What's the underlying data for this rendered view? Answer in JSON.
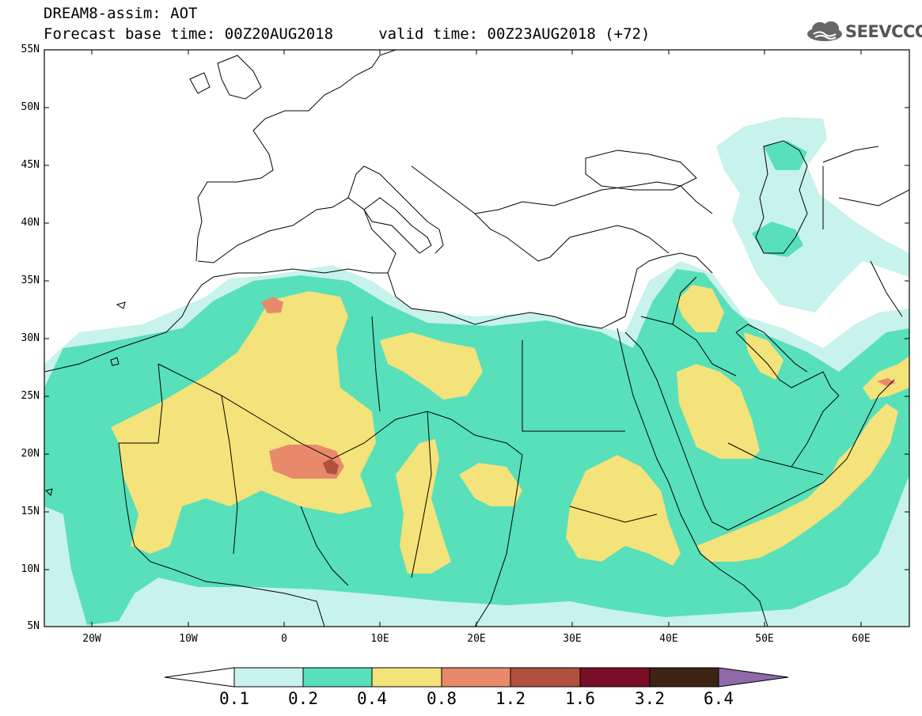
{
  "header": {
    "title_line1": "DREAM8-assim: AOT",
    "title_line2": "Forecast base time: 00Z20AUG2018     valid time: 00Z23AUG2018 (+72)",
    "logo_text": "SEEVCCC"
  },
  "map": {
    "y_labels": [
      "55N",
      "50N",
      "45N",
      "40N",
      "35N",
      "30N",
      "25N",
      "20N",
      "15N",
      "10N",
      "5N"
    ],
    "x_labels": [
      "20W",
      "10W",
      "0",
      "10E",
      "20E",
      "30E",
      "40E",
      "50E",
      "60E"
    ]
  },
  "colorbar": {
    "labels": [
      "0.1",
      "0.2",
      "0.4",
      "0.8",
      "1.2",
      "1.6",
      "3.2",
      "6.4"
    ],
    "colors": [
      "#c8f2ec",
      "#57e0b9",
      "#f4e27a",
      "#e8896b",
      "#b2503f",
      "#7a0d27",
      "#3d2312",
      "#8e6aa8"
    ]
  }
}
